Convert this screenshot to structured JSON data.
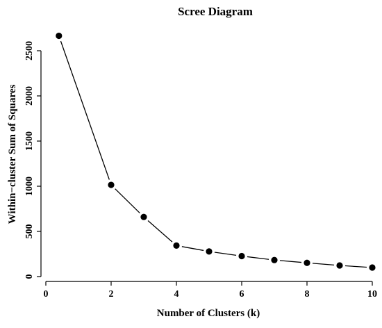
{
  "chart_data": {
    "type": "line",
    "title": "Scree Diagram",
    "xlabel": "Number of Clusters (k)",
    "ylabel": "Within−cluster Sum of Squares",
    "xlim": [
      0,
      10
    ],
    "ylim": [
      0,
      2700
    ],
    "x_ticks": [
      "0",
      "2",
      "4",
      "6",
      "8",
      "10"
    ],
    "y_ticks": [
      "0",
      "500",
      "1000",
      "1500",
      "2000",
      "2500"
    ],
    "grid": false,
    "series": [
      {
        "x": [
          0.4,
          2,
          3,
          4,
          5,
          6,
          7,
          8,
          9,
          10
        ],
        "values": [
          2665,
          1015,
          660,
          343,
          278,
          227,
          183,
          152,
          123,
          100
        ]
      }
    ],
    "colors": {
      "line": "#000000",
      "marker": "#000000"
    }
  }
}
